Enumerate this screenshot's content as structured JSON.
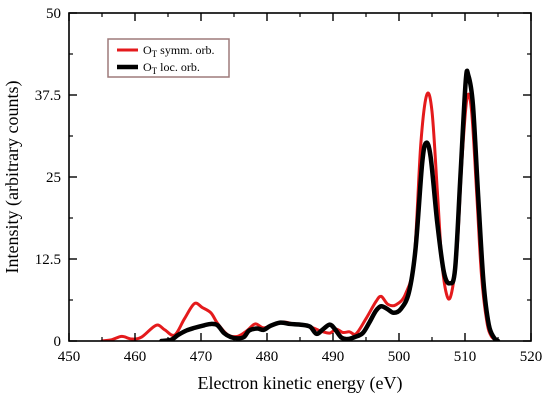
{
  "chart_data": {
    "type": "line",
    "xlabel": "Electron kinetic energy (eV)",
    "ylabel": "Intensity (arbitrary counts)",
    "xlim": [
      450,
      520
    ],
    "ylim": [
      0,
      50
    ],
    "x_ticks": [
      450,
      460,
      470,
      480,
      490,
      500,
      510,
      520
    ],
    "x_tick_labels": [
      "450",
      "460",
      "470",
      "480",
      "490",
      "500",
      "510",
      "520"
    ],
    "y_ticks": [
      0,
      12.5,
      25,
      37.5,
      50
    ],
    "y_tick_labels": [
      "0",
      "12.5",
      "25",
      "37.5",
      "50"
    ],
    "grid": false,
    "legend_position": "top-left",
    "series": [
      {
        "name": "OT symm. orb.",
        "label_main": "O",
        "label_sub": "T",
        "label_rest": " symm. orb.",
        "color": "#e41a1c",
        "stroke": "thin",
        "points": [
          [
            455,
            0
          ],
          [
            456.5,
            0.2
          ],
          [
            458,
            0.7
          ],
          [
            459.5,
            0.3
          ],
          [
            461,
            0.6
          ],
          [
            463.2,
            2.4
          ],
          [
            464.5,
            1.7
          ],
          [
            466,
            0.9
          ],
          [
            467.5,
            3.4
          ],
          [
            469,
            5.7
          ],
          [
            470.2,
            5.1
          ],
          [
            471.5,
            4.3
          ],
          [
            472.5,
            2.7
          ],
          [
            474,
            1.0
          ],
          [
            475.5,
            0.7
          ],
          [
            477,
            1.6
          ],
          [
            478.2,
            2.6
          ],
          [
            479.5,
            2.0
          ],
          [
            481,
            2.5
          ],
          [
            482.5,
            2.9
          ],
          [
            484,
            2.6
          ],
          [
            485.5,
            2.4
          ],
          [
            487,
            2.0
          ],
          [
            488.2,
            1.5
          ],
          [
            489.5,
            1.2
          ],
          [
            490.5,
            1.8
          ],
          [
            491.5,
            1.3
          ],
          [
            492.5,
            1.4
          ],
          [
            493.5,
            1.1
          ],
          [
            495,
            3.4
          ],
          [
            496.5,
            6.0
          ],
          [
            497.3,
            6.8
          ],
          [
            498.3,
            5.6
          ],
          [
            499.5,
            5.5
          ],
          [
            501,
            7.2
          ],
          [
            502.3,
            12.5
          ],
          [
            503.3,
            30.0
          ],
          [
            504.2,
            37.5
          ],
          [
            505.0,
            35.0
          ],
          [
            505.8,
            23.0
          ],
          [
            506.5,
            12.0
          ],
          [
            507.3,
            6.8
          ],
          [
            508.0,
            7.5
          ],
          [
            508.8,
            14.0
          ],
          [
            509.5,
            27.0
          ],
          [
            510.3,
            37.0
          ],
          [
            511.0,
            35.0
          ],
          [
            511.8,
            22.0
          ],
          [
            512.5,
            10.0
          ],
          [
            513.3,
            3.0
          ],
          [
            514.0,
            0.7
          ],
          [
            515,
            0
          ]
        ]
      },
      {
        "name": "OT loc. orb.",
        "label_main": "O",
        "label_sub": "T",
        "label_rest": " loc. orb.",
        "color": "#000000",
        "stroke": "thick",
        "points": [
          [
            464,
            0
          ],
          [
            465.5,
            0.2
          ],
          [
            466.5,
            0.9
          ],
          [
            467.8,
            1.6
          ],
          [
            469,
            2.0
          ],
          [
            470.5,
            2.4
          ],
          [
            471.5,
            2.6
          ],
          [
            472.5,
            2.4
          ],
          [
            473.5,
            1.2
          ],
          [
            474.5,
            0.6
          ],
          [
            475.5,
            0.4
          ],
          [
            476.5,
            0.6
          ],
          [
            477.3,
            1.6
          ],
          [
            478.5,
            1.9
          ],
          [
            479.5,
            1.7
          ],
          [
            480.5,
            2.3
          ],
          [
            482,
            2.8
          ],
          [
            483.5,
            2.6
          ],
          [
            485,
            2.5
          ],
          [
            486.5,
            2.2
          ],
          [
            487.5,
            1.1
          ],
          [
            488.5,
            1.8
          ],
          [
            489.5,
            2.5
          ],
          [
            490.3,
            1.8
          ],
          [
            491.3,
            0.5
          ],
          [
            492.3,
            0.3
          ],
          [
            493.3,
            0.6
          ],
          [
            494.5,
            1.2
          ],
          [
            495.5,
            2.8
          ],
          [
            496.5,
            4.6
          ],
          [
            497.3,
            5.3
          ],
          [
            498.2,
            4.9
          ],
          [
            499.2,
            4.3
          ],
          [
            500.3,
            4.9
          ],
          [
            501.5,
            7.4
          ],
          [
            502.5,
            14.0
          ],
          [
            503.5,
            27.0
          ],
          [
            504.1,
            30.2
          ],
          [
            504.8,
            28.0
          ],
          [
            505.8,
            18.0
          ],
          [
            506.8,
            10.5
          ],
          [
            507.7,
            8.8
          ],
          [
            508.5,
            11.0
          ],
          [
            509.3,
            25.0
          ],
          [
            510.1,
            39.5
          ],
          [
            510.5,
            40.5
          ],
          [
            511.2,
            36.0
          ],
          [
            512.0,
            22.0
          ],
          [
            512.8,
            9.0
          ],
          [
            513.6,
            2.5
          ],
          [
            514.4,
            0.5
          ],
          [
            515,
            0
          ]
        ]
      }
    ]
  }
}
